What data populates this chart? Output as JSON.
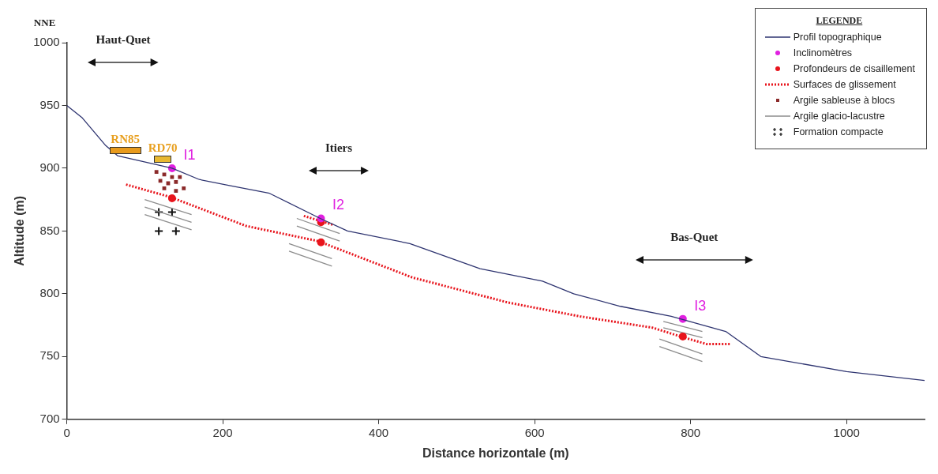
{
  "chart_data": {
    "type": "line",
    "xlabel": "Distance horizontale (m)",
    "ylabel": "Altitude (m)",
    "legend_title": "LEGENDE",
    "legend": "top right",
    "grid": false,
    "xlim": [
      0,
      1100
    ],
    "xticks": [
      0,
      200,
      400,
      600,
      800,
      1000
    ],
    "ylim": [
      700,
      1000
    ],
    "yticks": [
      700,
      750,
      800,
      850,
      900,
      950,
      1000
    ],
    "series": [
      {
        "name": "Profil topographique",
        "color": "#2e3470",
        "line_style": "solid",
        "x": [
          0,
          20,
          50,
          65,
          135,
          170,
          210,
          260,
          325,
          360,
          440,
          530,
          610,
          650,
          710,
          775,
          845,
          890,
          1000,
          1100
        ],
        "values": [
          950,
          940,
          918,
          910,
          900,
          891,
          886,
          880,
          860,
          850,
          840,
          820,
          810,
          800,
          790,
          782,
          770,
          750,
          738,
          731
        ]
      },
      {
        "name": "Inclinomètres",
        "type": "scatter",
        "color": "#e020e0",
        "marker": "circle",
        "x": [
          135,
          326,
          790
        ],
        "values": [
          900,
          860,
          780
        ]
      },
      {
        "name": "Profondeurs de cisaillement",
        "type": "scatter",
        "color": "#e8141c",
        "marker": "circle",
        "x": [
          135,
          326,
          326,
          790
        ],
        "values": [
          876,
          857,
          841,
          766
        ]
      },
      {
        "name": "Surfaces de glissement",
        "color": "#e8141c",
        "line_style": "dotted",
        "x": [
          76,
          133,
          230,
          322,
          443,
          566,
          658,
          751,
          787,
          820,
          852
        ],
        "values": [
          887,
          877,
          854,
          842,
          813,
          793,
          782,
          773,
          766,
          760,
          760
        ]
      },
      {
        "color": "#e8141c",
        "line_style": "dotted",
        "x": [
          304,
          341
        ],
        "values": [
          862,
          855
        ]
      },
      {
        "name": "Argile sableuse à blocs",
        "type": "scatter",
        "color": "#8b2a2a",
        "marker": "square",
        "x": [
          115,
          125,
          135,
          145,
          120,
          130,
          140,
          150,
          125,
          140
        ],
        "values": [
          897,
          895,
          893,
          893,
          890,
          888,
          889,
          884,
          884,
          882
        ]
      },
      {
        "name": "Argile glacio-lacustre",
        "color": "#8c8c8c",
        "line_style": "solid",
        "x": [
          100,
          160
        ],
        "values": [
          875,
          863
        ]
      },
      {
        "color": "#8c8c8c",
        "line_style": "solid",
        "x": [
          100,
          160
        ],
        "values": [
          869,
          857
        ]
      },
      {
        "color": "#8c8c8c",
        "line_style": "solid",
        "x": [
          100,
          160
        ],
        "values": [
          863,
          851
        ]
      },
      {
        "color": "#8c8c8c",
        "line_style": "solid",
        "x": [
          295,
          350
        ],
        "values": [
          860,
          848
        ]
      },
      {
        "color": "#8c8c8c",
        "line_style": "solid",
        "x": [
          295,
          350
        ],
        "values": [
          854,
          842
        ]
      },
      {
        "color": "#8c8c8c",
        "line_style": "solid",
        "x": [
          285,
          340
        ],
        "values": [
          840,
          828
        ]
      },
      {
        "color": "#8c8c8c",
        "line_style": "solid",
        "x": [
          285,
          340
        ],
        "values": [
          834,
          822
        ]
      },
      {
        "color": "#8c8c8c",
        "line_style": "solid",
        "x": [
          765,
          815
        ],
        "values": [
          778,
          770
        ]
      },
      {
        "color": "#8c8c8c",
        "line_style": "solid",
        "x": [
          765,
          815
        ],
        "values": [
          773,
          765
        ]
      },
      {
        "color": "#8c8c8c",
        "line_style": "solid",
        "x": [
          760,
          815
        ],
        "values": [
          764,
          752
        ]
      },
      {
        "color": "#8c8c8c",
        "line_style": "solid",
        "x": [
          760,
          815
        ],
        "values": [
          758,
          746
        ]
      },
      {
        "name": "Formation compacte",
        "type": "scatter",
        "color": "#111111",
        "marker": "cross",
        "x": [
          118,
          135,
          118,
          140
        ],
        "values": [
          865,
          865,
          850,
          850
        ]
      }
    ],
    "annotations": [
      "NNE",
      "Haut-Quet",
      "Itiers",
      "Bas-Quet",
      {
        "text": "RN85",
        "x": 75,
        "y": 909
      },
      {
        "text": "RD70",
        "x": 123,
        "y": 902
      },
      {
        "text": "I1",
        "x": 135,
        "y": 900
      },
      {
        "text": "I2",
        "x": 326,
        "y": 860
      },
      {
        "text": "I3",
        "x": 790,
        "y": 780
      }
    ]
  }
}
